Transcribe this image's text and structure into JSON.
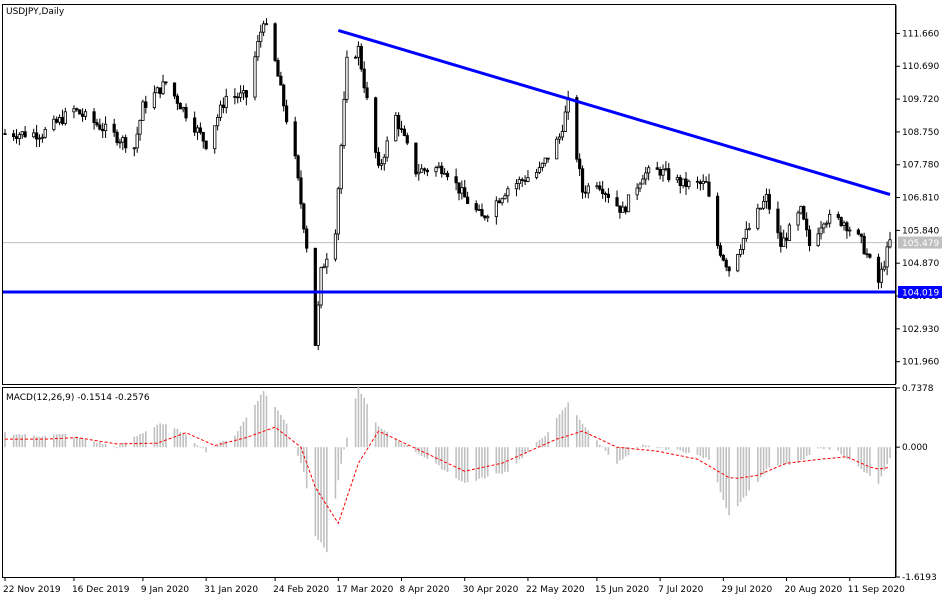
{
  "window": {
    "title": "USDJPY,Daily"
  },
  "chart_data": [
    {
      "type": "candlestick",
      "title": "USDJPY,Daily",
      "ylim": [
        101.3,
        112.5
      ],
      "yticks": [
        "111.660",
        "110.690",
        "109.720",
        "108.750",
        "107.780",
        "106.810",
        "105.840",
        "104.870",
        "103.900",
        "102.930",
        "101.960"
      ],
      "current_price_label": "105.479",
      "current_price": 105.479,
      "support_label": "104.019",
      "support_level": 104.019,
      "grid": false,
      "colors": {
        "candle": "#000000",
        "trendline": "#0000ff",
        "current_line": "#c0c0c0",
        "price_tag_bg": "#c0c0c0",
        "support_tag_bg": "#0000ff"
      },
      "trendline": {
        "start": {
          "date": "2020-03-17",
          "price": 111.75
        },
        "end": {
          "date": "2020-09-25",
          "price": 106.9
        }
      },
      "anchors": [
        [
          "2019-11-22",
          108.7
        ],
        [
          "2019-12-05",
          108.7
        ],
        [
          "2019-12-16",
          109.4
        ],
        [
          "2019-12-31",
          108.6
        ],
        [
          "2020-01-06",
          108.3
        ],
        [
          "2020-01-09",
          109.5
        ],
        [
          "2020-01-17",
          110.2
        ],
        [
          "2020-01-24",
          109.3
        ],
        [
          "2020-01-31",
          108.4
        ],
        [
          "2020-02-07",
          109.8
        ],
        [
          "2020-02-14",
          109.8
        ],
        [
          "2020-02-20",
          112.1
        ],
        [
          "2020-02-24",
          110.8
        ],
        [
          "2020-03-02",
          107.9
        ],
        [
          "2020-03-06",
          105.4
        ],
        [
          "2020-03-09",
          102.5
        ],
        [
          "2020-03-11",
          104.6
        ],
        [
          "2020-03-16",
          105.9
        ],
        [
          "2020-03-20",
          110.8
        ],
        [
          "2020-03-24",
          111.2
        ],
        [
          "2020-03-31",
          107.6
        ],
        [
          "2020-04-06",
          109.2
        ],
        [
          "2020-04-13",
          107.6
        ],
        [
          "2020-04-23",
          107.7
        ],
        [
          "2020-04-30",
          106.8
        ],
        [
          "2020-05-06",
          106.2
        ],
        [
          "2020-05-15",
          107.1
        ],
        [
          "2020-05-26",
          107.6
        ],
        [
          "2020-06-02",
          108.6
        ],
        [
          "2020-06-05",
          109.6
        ],
        [
          "2020-06-10",
          107.0
        ],
        [
          "2020-06-15",
          107.3
        ],
        [
          "2020-06-24",
          106.4
        ],
        [
          "2020-07-01",
          107.5
        ],
        [
          "2020-07-07",
          107.6
        ],
        [
          "2020-07-15",
          107.2
        ],
        [
          "2020-07-23",
          107.2
        ],
        [
          "2020-07-27",
          105.4
        ],
        [
          "2020-07-31",
          104.7
        ],
        [
          "2020-08-05",
          105.6
        ],
        [
          "2020-08-13",
          106.8
        ],
        [
          "2020-08-18",
          105.4
        ],
        [
          "2020-08-25",
          106.4
        ],
        [
          "2020-08-28",
          105.4
        ],
        [
          "2020-09-02",
          106.2
        ],
        [
          "2020-09-09",
          106.1
        ],
        [
          "2020-09-15",
          105.5
        ],
        [
          "2020-09-21",
          104.3
        ],
        [
          "2020-09-25",
          105.5
        ]
      ],
      "x_start": "2019-11-22",
      "x_end": "2020-09-25",
      "xticks": [
        "22 Nov 2019",
        "16 Dec 2019",
        "9 Jan 2020",
        "31 Jan 2020",
        "24 Feb 2020",
        "17 Mar 2020",
        "8 Apr 2020",
        "30 Apr 2020",
        "22 May 2020",
        "15 Jun 2020",
        "7 Jul 2020",
        "29 Jul 2020",
        "20 Aug 2020",
        "11 Sep 2020"
      ]
    },
    {
      "type": "bar",
      "title": "MACD(12,26,9) -0.1514 -0.2576",
      "indicator": "MACD",
      "params": [
        12,
        26,
        9
      ],
      "macd_value": -0.1514,
      "signal_value": -0.2576,
      "ylim": [
        -1.6193,
        0.7378
      ],
      "yticks": [
        "0.7378",
        "0.000",
        "-1.6193"
      ],
      "colors": {
        "histogram": "#c0c0c0",
        "signal": "#ff0000"
      },
      "macd_anchors": [
        [
          "2019-11-22",
          0.18
        ],
        [
          "2019-12-03",
          0.14
        ],
        [
          "2019-12-13",
          0.16
        ],
        [
          "2019-12-31",
          0.0
        ],
        [
          "2020-01-09",
          0.18
        ],
        [
          "2020-01-15",
          0.3
        ],
        [
          "2020-01-22",
          0.2
        ],
        [
          "2020-01-31",
          -0.05
        ],
        [
          "2020-02-10",
          0.15
        ],
        [
          "2020-02-20",
          0.7
        ],
        [
          "2020-02-28",
          0.3
        ],
        [
          "2020-03-05",
          -0.3
        ],
        [
          "2020-03-09",
          -1.1
        ],
        [
          "2020-03-13",
          -1.3
        ],
        [
          "2020-03-18",
          -0.2
        ],
        [
          "2020-03-24",
          0.75
        ],
        [
          "2020-03-31",
          0.25
        ],
        [
          "2020-04-15",
          -0.1
        ],
        [
          "2020-04-30",
          -0.45
        ],
        [
          "2020-05-15",
          -0.3
        ],
        [
          "2020-05-28",
          0.15
        ],
        [
          "2020-06-05",
          0.55
        ],
        [
          "2020-06-12",
          0.2
        ],
        [
          "2020-06-22",
          -0.2
        ],
        [
          "2020-07-01",
          0.02
        ],
        [
          "2020-07-15",
          -0.05
        ],
        [
          "2020-07-24",
          -0.15
        ],
        [
          "2020-07-31",
          -0.85
        ],
        [
          "2020-08-07",
          -0.55
        ],
        [
          "2020-08-14",
          -0.25
        ],
        [
          "2020-08-24",
          -0.2
        ],
        [
          "2020-09-01",
          0.0
        ],
        [
          "2020-09-07",
          -0.05
        ],
        [
          "2020-09-14",
          -0.25
        ],
        [
          "2020-09-21",
          -0.45
        ],
        [
          "2020-09-25",
          -0.15
        ]
      ],
      "signal_anchors": [
        [
          "2019-11-22",
          0.1
        ],
        [
          "2019-12-06",
          0.1
        ],
        [
          "2019-12-17",
          0.12
        ],
        [
          "2019-12-31",
          0.04
        ],
        [
          "2020-01-14",
          0.05
        ],
        [
          "2020-01-24",
          0.18
        ],
        [
          "2020-02-03",
          0.02
        ],
        [
          "2020-02-14",
          0.12
        ],
        [
          "2020-02-24",
          0.25
        ],
        [
          "2020-03-04",
          0.0
        ],
        [
          "2020-03-09",
          -0.5
        ],
        [
          "2020-03-17",
          -0.95
        ],
        [
          "2020-03-24",
          -0.2
        ],
        [
          "2020-03-31",
          0.2
        ],
        [
          "2020-04-15",
          -0.05
        ],
        [
          "2020-04-30",
          -0.3
        ],
        [
          "2020-05-13",
          -0.2
        ],
        [
          "2020-06-01",
          0.1
        ],
        [
          "2020-06-10",
          0.2
        ],
        [
          "2020-06-22",
          0.0
        ],
        [
          "2020-07-06",
          -0.05
        ],
        [
          "2020-07-20",
          -0.15
        ],
        [
          "2020-08-01",
          -0.4
        ],
        [
          "2020-08-10",
          -0.35
        ],
        [
          "2020-08-20",
          -0.2
        ],
        [
          "2020-09-01",
          -0.15
        ],
        [
          "2020-09-10",
          -0.12
        ],
        [
          "2020-09-20",
          -0.28
        ],
        [
          "2020-09-25",
          -0.25
        ]
      ]
    }
  ]
}
